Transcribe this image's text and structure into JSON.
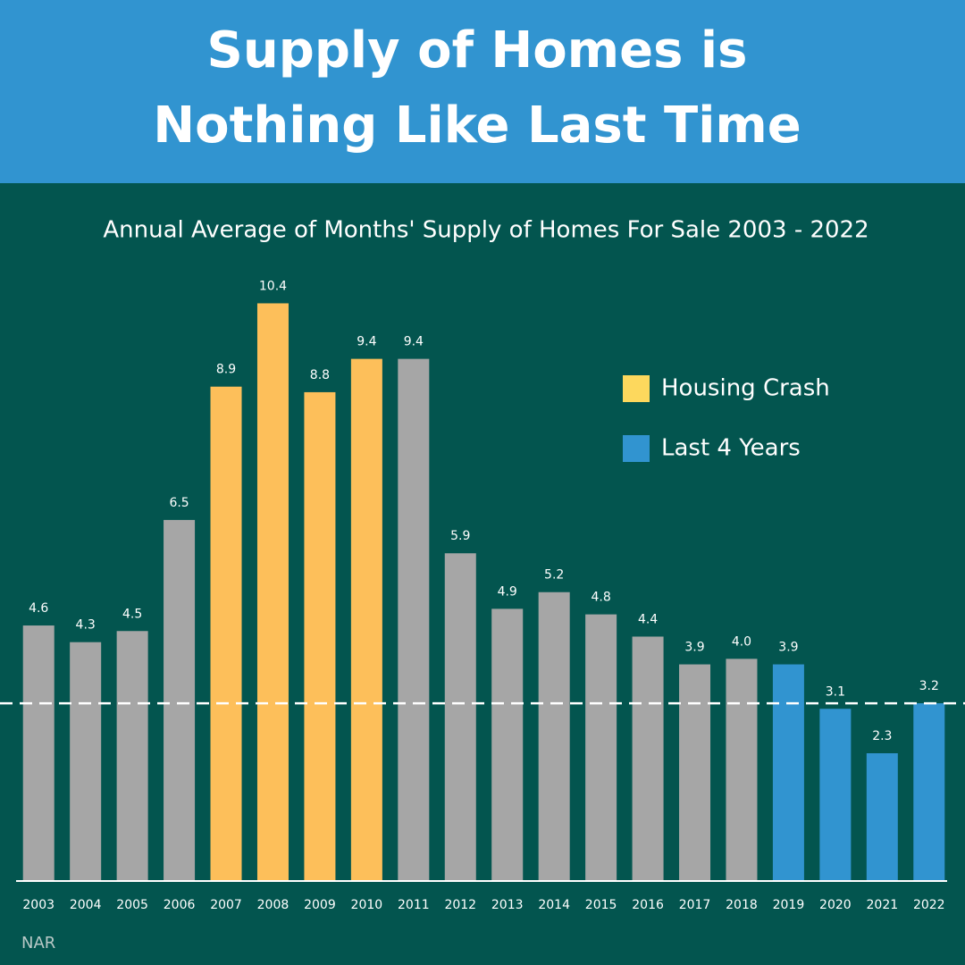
{
  "chart_data": {
    "type": "bar",
    "title": [
      "Supply of Homes is",
      "Nothing Like Last Time"
    ],
    "subtitle": "Annual Average of Months' Supply of Homes For Sale 2003 - 2022",
    "source": "NAR",
    "categories": [
      "2003",
      "2004",
      "2005",
      "2006",
      "2007",
      "2008",
      "2009",
      "2010",
      "2011",
      "2012",
      "2013",
      "2014",
      "2015",
      "2016",
      "2017",
      "2018",
      "2019",
      "2020",
      "2021",
      "2022"
    ],
    "values": [
      4.6,
      4.3,
      4.5,
      6.5,
      8.9,
      10.4,
      8.8,
      9.4,
      9.4,
      5.9,
      4.9,
      5.2,
      4.8,
      4.4,
      3.9,
      4.0,
      3.9,
      3.1,
      2.3,
      3.2
    ],
    "value_labels": [
      "4.6",
      "4.3",
      "4.5",
      "6.5",
      "8.9",
      "10.4",
      "8.8",
      "9.4",
      "9.4",
      "5.9",
      "4.9",
      "5.2",
      "4.8",
      "4.4",
      "3.9",
      "4.0",
      "3.9",
      "3.1",
      "2.3",
      "3.2"
    ],
    "bar_colors": [
      "#a6a6a6",
      "#a6a6a6",
      "#a6a6a6",
      "#a6a6a6",
      "#fdbf5a",
      "#fdbf5a",
      "#fdbf5a",
      "#fdbf5a",
      "#a6a6a6",
      "#a6a6a6",
      "#a6a6a6",
      "#a6a6a6",
      "#a6a6a6",
      "#a6a6a6",
      "#a6a6a6",
      "#a6a6a6",
      "#3194d0",
      "#3194d0",
      "#3194d0",
      "#3194d0"
    ],
    "legend": [
      {
        "name": "Housing Crash",
        "color": "#fdd85d"
      },
      {
        "name": "Last 4 Years",
        "color": "#3194d0"
      }
    ],
    "reference_line": 3.2,
    "ylim": [
      0,
      12
    ],
    "grid": false
  }
}
